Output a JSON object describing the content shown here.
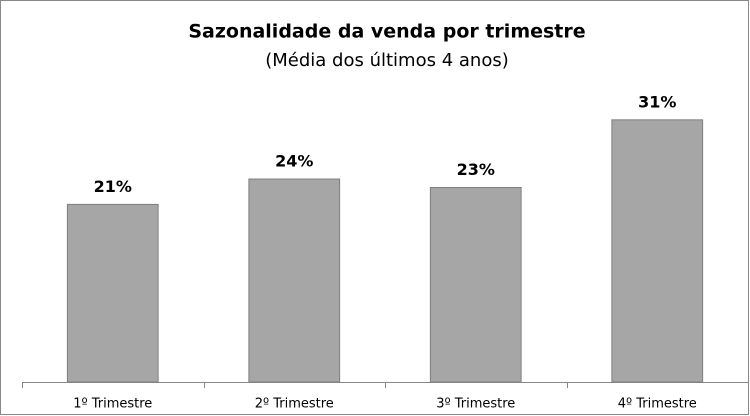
{
  "chart_data": {
    "type": "bar",
    "title": "Sazonalidade da venda por trimestre",
    "subtitle": "(Média dos últimos 4 anos)",
    "categories": [
      "1º Trimestre",
      "2º Trimestre",
      "3º Trimestre",
      "4º Trimestre"
    ],
    "values": [
      21,
      24,
      23,
      31
    ],
    "value_labels": [
      "21%",
      "24%",
      "23%",
      "31%"
    ],
    "color": "#a6a6a6",
    "ylim": [
      0,
      35
    ]
  }
}
